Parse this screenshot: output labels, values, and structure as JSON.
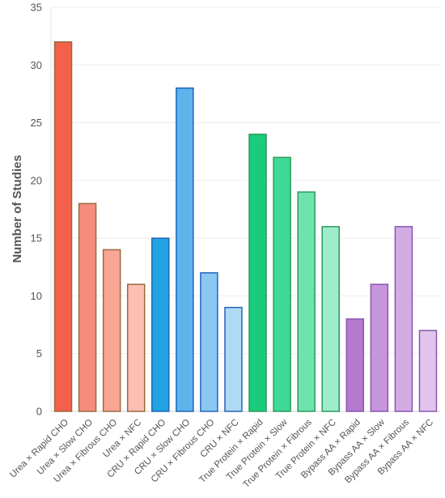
{
  "chart_data": {
    "type": "bar",
    "title": "",
    "xlabel": "",
    "ylabel": "Number of Studies",
    "ylim": [
      0,
      35
    ],
    "yticks": [
      0,
      5,
      10,
      15,
      20,
      25,
      30,
      35
    ],
    "grid": true,
    "legend": "none",
    "categories": [
      "Urea × Rapid CHO",
      "Urea × Slow CHO",
      "Urea × Fibrous CHO",
      "Urea × NFC",
      "CRU × Rapid CHO",
      "CRU × Slow CHO",
      "CRU × Fibrous CHO",
      "CRU × NFC",
      "True Protein × Rapid",
      "True Protein × Slow",
      "True Protein × Fibrous",
      "True Protein × NFC",
      "Bypass AA × Rapid",
      "Bypass AA × Slow",
      "Bypass AA × Fibrous",
      "Bypass AA × NFC"
    ],
    "values": [
      32,
      18,
      14,
      11,
      15,
      28,
      12,
      9,
      24,
      22,
      19,
      16,
      8,
      11,
      16,
      7
    ],
    "colors": {
      "fill": [
        "#f5604a",
        "#f78c7c",
        "#f8a596",
        "#fbbfb4",
        "#21a4e2",
        "#5fb3ec",
        "#8ac8f2",
        "#b0d9f6",
        "#19cc7b",
        "#3fd996",
        "#6ee3b0",
        "#9eeccb",
        "#b57ace",
        "#c695dc",
        "#d3ace4",
        "#e0c4ec"
      ],
      "stroke": [
        "#9a6a3c",
        "#9a6a3c",
        "#9a6a3c",
        "#9a6a3c",
        "#2266b8",
        "#2266b8",
        "#2266b8",
        "#2266b8",
        "#2c9a5c",
        "#2c9a5c",
        "#2c9a5c",
        "#2c9a5c",
        "#8a55b0",
        "#8a55b0",
        "#8a55b0",
        "#8a55b0"
      ]
    }
  }
}
